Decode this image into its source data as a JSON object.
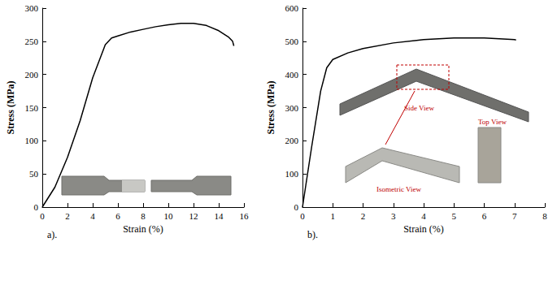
{
  "chart_data": [
    {
      "type": "line",
      "panel_label": "a).",
      "xlabel": "Strain (%)",
      "ylabel": "Stress (MPa)",
      "color": "#000000",
      "x": [
        0,
        0.5,
        1,
        2,
        3,
        4,
        5,
        5.5,
        6,
        7,
        8,
        9,
        10,
        11,
        12,
        13,
        14,
        14.8,
        15.1,
        15.2
      ],
      "values": [
        0,
        15,
        30,
        75,
        130,
        195,
        245,
        255,
        258,
        264,
        268,
        272,
        275,
        277,
        277,
        274,
        266,
        256,
        250,
        243
      ],
      "xlim": [
        0,
        16
      ],
      "ylim": [
        0,
        300
      ],
      "xticks": [
        0,
        2,
        4,
        6,
        8,
        10,
        12,
        14,
        16
      ],
      "yticks": [
        0,
        50,
        100,
        150,
        200,
        250,
        300
      ]
    },
    {
      "type": "line",
      "panel_label": "b).",
      "xlabel": "Strain (%)",
      "ylabel": "Stress (MPa)",
      "color": "#000000",
      "x": [
        0,
        0.3,
        0.6,
        0.8,
        1,
        1.5,
        2,
        3,
        4,
        5,
        6,
        7,
        7.05
      ],
      "values": [
        0,
        180,
        350,
        420,
        445,
        465,
        478,
        495,
        505,
        510,
        510,
        505,
        504
      ],
      "xlim": [
        0,
        8
      ],
      "ylim": [
        0,
        600
      ],
      "xticks": [
        0,
        1,
        2,
        3,
        4,
        5,
        6,
        7,
        8
      ],
      "yticks": [
        0,
        100,
        200,
        300,
        400,
        500,
        600
      ],
      "annotations": [
        "Side View",
        "Isometric View",
        "Top View"
      ]
    }
  ]
}
